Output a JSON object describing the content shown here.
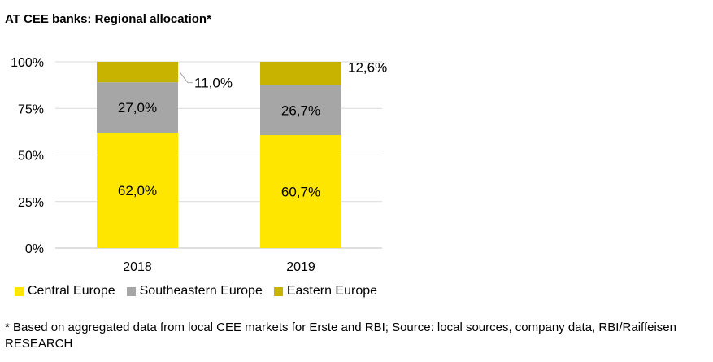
{
  "chart_data": {
    "type": "bar",
    "stacked": true,
    "title": "AT CEE banks: Regional allocation*",
    "categories": [
      "2018",
      "2019"
    ],
    "series": [
      {
        "name": "Central Europe",
        "values": [
          62.0,
          60.7
        ],
        "labels": [
          "62,0%",
          "60,7%"
        ],
        "color": "#ffe600"
      },
      {
        "name": "Southeastern Europe",
        "values": [
          27.0,
          26.7
        ],
        "labels": [
          "27,0%",
          "26,7%"
        ],
        "color": "#a6a6a6"
      },
      {
        "name": "Eastern Europe",
        "values": [
          11.0,
          12.6
        ],
        "labels": [
          "11,0%",
          "12,6%"
        ],
        "color": "#c8b400",
        "label_color": "#c8b400"
      }
    ],
    "yticks": [
      "0%",
      "25%",
      "50%",
      "75%",
      "100%"
    ],
    "ylim": [
      0,
      100
    ],
    "grid": true,
    "legend_position": "bottom-left",
    "footnote": "* Based on aggregated data from local CEE markets for Erste and RBI; Source: local sources, company data, RBI/Raiffeisen RESEARCH"
  }
}
